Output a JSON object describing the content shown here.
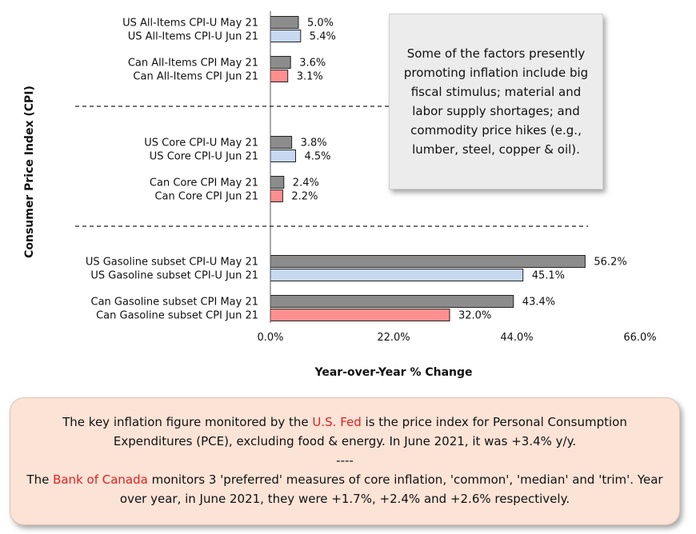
{
  "chart_data": {
    "type": "bar",
    "orientation": "horizontal",
    "xlabel": "Year-over-Year % Change",
    "ylabel": "Consumer Price Index (CPI)",
    "xlim": [
      0,
      66
    ],
    "x_ticks": [
      "0.0%",
      "22.0%",
      "44.0%",
      "66.0%"
    ],
    "x_tick_values": [
      0,
      22,
      44,
      66
    ],
    "grid": false,
    "colors": {
      "may": "#8c8c8c",
      "us_jun": "#c6d9f1",
      "can_jun": "#ff8f8f"
    },
    "categories": [
      "US All-Items CPI-U May 21",
      "US All-Items CPI-U Jun 21",
      "Can All-Items CPI May 21",
      "Can All-Items CPI Jun 21",
      "US Core CPI-U May 21",
      "US Core CPI-U Jun 21",
      "Can Core CPI May 21",
      "Can Core CPI Jun 21",
      "US Gasoline subset CPI-U May 21",
      "US Gasoline subset CPI-U Jun 21",
      "Can Gasoline subset CPI May 21",
      "Can Gasoline subset CPI Jun 21"
    ],
    "values": [
      5.0,
      5.4,
      3.6,
      3.1,
      3.8,
      4.5,
      2.4,
      2.2,
      56.2,
      45.1,
      43.4,
      32.0
    ],
    "value_labels": [
      "5.0%",
      "5.4%",
      "3.6%",
      "3.1%",
      "3.8%",
      "4.5%",
      "2.4%",
      "2.2%",
      "56.2%",
      "45.1%",
      "43.4%",
      "32.0%"
    ],
    "bar_colors": [
      "may",
      "us_jun",
      "may",
      "can_jun",
      "may",
      "us_jun",
      "may",
      "can_jun",
      "may",
      "us_jun",
      "may",
      "can_jun"
    ]
  },
  "factors_note": "Some of the factors presently promoting inflation include big fiscal stimulus; material and labor supply shortages; and commodity price hikes (e.g., lumber, steel, copper & oil).",
  "info": {
    "line1_pre": "The key inflation figure monitored by the ",
    "line1_org": "U.S. Fed",
    "line1_post": " is the price index for Personal Consumption Expenditures (PCE), excluding food & energy. In June 2021, it was +3.4% y/y.",
    "separator": "----",
    "line2_pre": "The ",
    "line2_org": "Bank of Canada",
    "line2_post": " monitors 3 'preferred' measures of core inflation, 'common', 'median' and 'trim'. Year over year, in June 2021, they were +1.7%, +2.4% and +2.6% respectively."
  }
}
